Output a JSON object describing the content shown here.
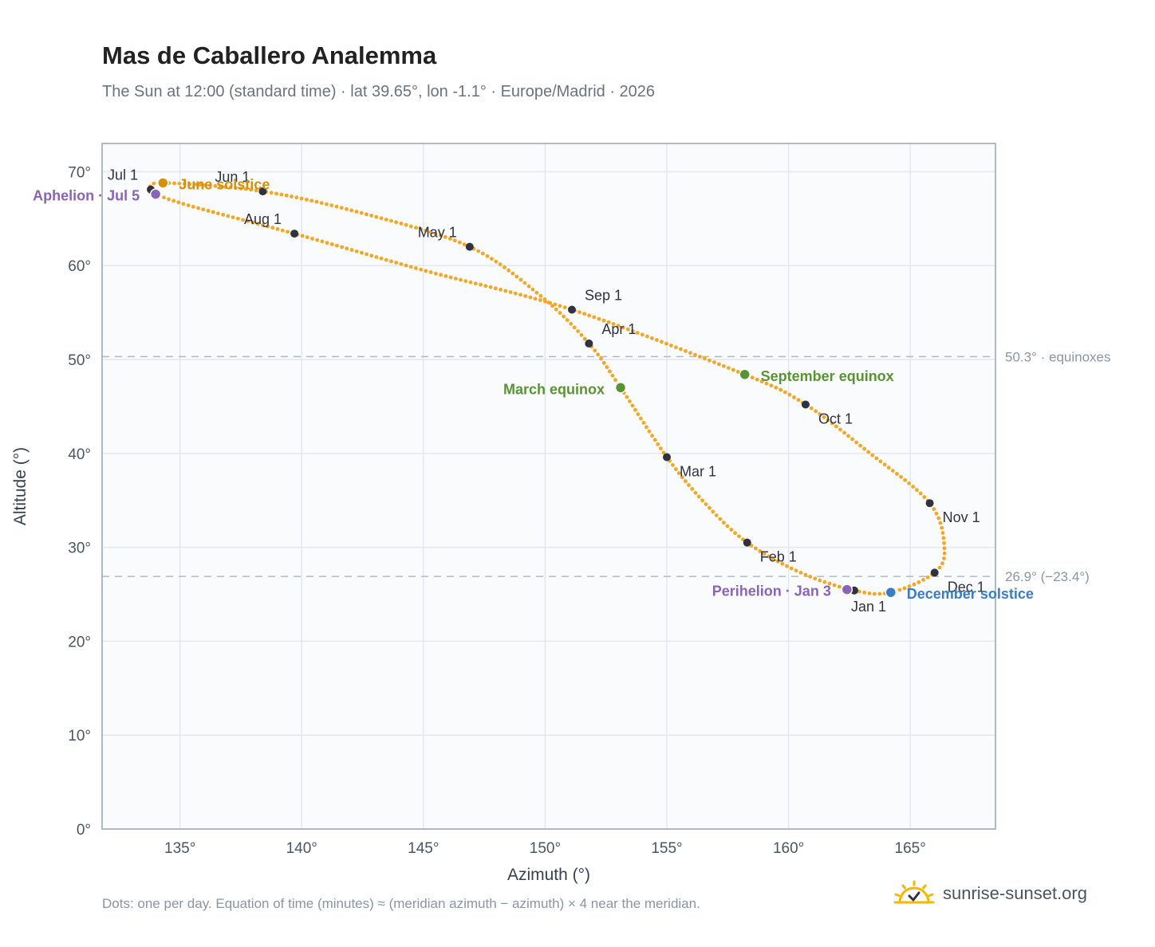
{
  "title": "Mas de Caballero Analemma",
  "subtitle": "The Sun at 12:00 (standard time) · lat 39.65°, lon -1.1° · Europe/Madrid · 2026",
  "footnote": "Dots: one per day. Equation of time (minutes) ≈ (meridian azimuth − azimuth) × 4 near the meridian.",
  "brand": {
    "text": "sunrise-sunset.org",
    "icon": "sun-checkmark-icon",
    "color": "#f5b800"
  },
  "colors": {
    "curve": "#f5a623",
    "month_marker": "#2f3340",
    "june_solstice": "#d4900a",
    "december_solstice": "#3a7dc4",
    "equinox": "#5a9432",
    "apsis": "#8b63b8",
    "plot_bg": "#f9fbfd",
    "grid": "#e3e8ee",
    "reference_line": "#aeb9c6"
  },
  "chart_data": {
    "type": "scatter",
    "title": "Mas de Caballero Analemma",
    "xlabel": "Azimuth (°)",
    "ylabel": "Altitude (°)",
    "xlim": [
      131.8,
      168.5
    ],
    "ylim": [
      0,
      73
    ],
    "x_ticks": [
      135,
      140,
      145,
      150,
      155,
      160,
      165
    ],
    "x_tick_labels": [
      "135°",
      "140°",
      "145°",
      "150°",
      "155°",
      "160°",
      "165°"
    ],
    "y_ticks": [
      0,
      10,
      20,
      30,
      40,
      50,
      60,
      70
    ],
    "y_tick_labels": [
      "0°",
      "10°",
      "20°",
      "30°",
      "40°",
      "50°",
      "60°",
      "70°"
    ],
    "grid": true,
    "reference_lines": [
      {
        "altitude": 50.3,
        "label": "50.3° · equinoxes"
      },
      {
        "altitude": 26.9,
        "label": "26.9° (−23.4°)"
      }
    ],
    "path": [
      {
        "date": "Jan 1",
        "azimuth": 162.7,
        "altitude": 25.4
      },
      {
        "date": "Jan 16",
        "azimuth": 160.5,
        "altitude": 27.3
      },
      {
        "date": "Feb 1",
        "azimuth": 158.3,
        "altitude": 30.5
      },
      {
        "date": "Feb 15",
        "azimuth": 156.6,
        "altitude": 34.6
      },
      {
        "date": "Mar 1",
        "azimuth": 155.0,
        "altitude": 39.6
      },
      {
        "date": "Mar 20",
        "azimuth": 153.1,
        "altitude": 47.0
      },
      {
        "date": "Apr 1",
        "azimuth": 151.8,
        "altitude": 51.7
      },
      {
        "date": "Apr 15",
        "azimuth": 149.8,
        "altitude": 56.8
      },
      {
        "date": "May 1",
        "azimuth": 146.9,
        "altitude": 62.0
      },
      {
        "date": "May 15",
        "azimuth": 142.6,
        "altitude": 65.5
      },
      {
        "date": "Jun 1",
        "azimuth": 138.4,
        "altitude": 67.9
      },
      {
        "date": "Jun 21",
        "azimuth": 134.3,
        "altitude": 68.8
      },
      {
        "date": "Jul 1",
        "azimuth": 133.8,
        "altitude": 68.1
      },
      {
        "date": "Jul 5",
        "azimuth": 134.0,
        "altitude": 67.6
      },
      {
        "date": "Jul 15",
        "azimuth": 135.5,
        "altitude": 66.3
      },
      {
        "date": "Aug 1",
        "azimuth": 139.7,
        "altitude": 63.4
      },
      {
        "date": "Aug 15",
        "azimuth": 145.0,
        "altitude": 59.5
      },
      {
        "date": "Sep 1",
        "azimuth": 151.1,
        "altitude": 55.3
      },
      {
        "date": "Sep 22",
        "azimuth": 158.2,
        "altitude": 48.4
      },
      {
        "date": "Oct 1",
        "azimuth": 160.7,
        "altitude": 45.2
      },
      {
        "date": "Oct 15",
        "azimuth": 163.3,
        "altitude": 40.1
      },
      {
        "date": "Nov 1",
        "azimuth": 165.8,
        "altitude": 34.7
      },
      {
        "date": "Nov 15",
        "azimuth": 166.4,
        "altitude": 30.0
      },
      {
        "date": "Dec 1",
        "azimuth": 166.0,
        "altitude": 27.3
      },
      {
        "date": "Dec 21",
        "azimuth": 164.2,
        "altitude": 25.2
      }
    ],
    "month_markers": [
      {
        "label": "Jan 1",
        "azimuth": 162.7,
        "altitude": 25.4,
        "anchor": "below"
      },
      {
        "label": "Feb 1",
        "azimuth": 158.3,
        "altitude": 30.5,
        "anchor": "below-right"
      },
      {
        "label": "Mar 1",
        "azimuth": 155.0,
        "altitude": 39.6,
        "anchor": "below-right"
      },
      {
        "label": "Apr 1",
        "azimuth": 151.8,
        "altitude": 51.7,
        "anchor": "above-right"
      },
      {
        "label": "May 1",
        "azimuth": 146.9,
        "altitude": 62.0,
        "anchor": "above-left"
      },
      {
        "label": "Jun 1",
        "azimuth": 138.4,
        "altitude": 67.9,
        "anchor": "above-left"
      },
      {
        "label": "Jul 1",
        "azimuth": 133.8,
        "altitude": 68.1,
        "anchor": "above-left"
      },
      {
        "label": "Aug 1",
        "azimuth": 139.7,
        "altitude": 63.4,
        "anchor": "above-left"
      },
      {
        "label": "Sep 1",
        "azimuth": 151.1,
        "altitude": 55.3,
        "anchor": "above-right"
      },
      {
        "label": "Oct 1",
        "azimuth": 160.7,
        "altitude": 45.2,
        "anchor": "below-right"
      },
      {
        "label": "Nov 1",
        "azimuth": 165.8,
        "altitude": 34.7,
        "anchor": "below-right"
      },
      {
        "label": "Dec 1",
        "azimuth": 166.0,
        "altitude": 27.3,
        "anchor": "below-right"
      }
    ],
    "events": [
      {
        "label": "June solstice",
        "azimuth": 134.3,
        "altitude": 68.8,
        "color_key": "june_solstice",
        "side": "right"
      },
      {
        "label": "Aphelion · Jul 5",
        "azimuth": 134.0,
        "altitude": 67.6,
        "color_key": "apsis",
        "side": "left"
      },
      {
        "label": "March equinox",
        "azimuth": 153.1,
        "altitude": 47.0,
        "color_key": "equinox",
        "side": "left"
      },
      {
        "label": "September equinox",
        "azimuth": 158.2,
        "altitude": 48.4,
        "color_key": "equinox",
        "side": "right"
      },
      {
        "label": "Perihelion · Jan 3",
        "azimuth": 162.4,
        "altitude": 25.5,
        "color_key": "apsis",
        "side": "left"
      },
      {
        "label": "December solstice",
        "azimuth": 164.2,
        "altitude": 25.2,
        "color_key": "december_solstice",
        "side": "right"
      }
    ]
  }
}
